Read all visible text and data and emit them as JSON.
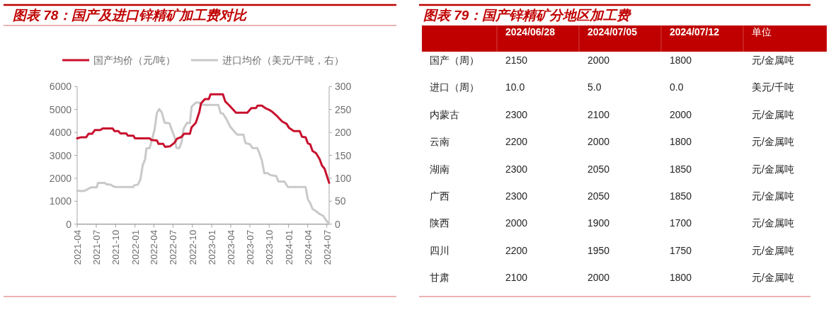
{
  "chart_data": [
    {
      "type": "line",
      "title": "图表 78：国产及进口锌精矿加工费对比",
      "legend": "top",
      "grid": false,
      "marker": "none",
      "line_style": "solid",
      "xlim": [
        "2021-04-01",
        "2024-07-12"
      ],
      "xticks": [
        {
          "value": "2021-04-01",
          "label": "2021-04"
        },
        {
          "value": "2021-07-01",
          "label": "2021-07"
        },
        {
          "value": "2021-10-01",
          "label": "2021-10"
        },
        {
          "value": "2022-01-01",
          "label": "2022-01"
        },
        {
          "value": "2022-04-01",
          "label": "2022-04"
        },
        {
          "value": "2022-07-01",
          "label": "2022-07"
        },
        {
          "value": "2022-10-01",
          "label": "2022-10"
        },
        {
          "value": "2023-01-01",
          "label": "2023-01"
        },
        {
          "value": "2023-04-01",
          "label": "2023-04"
        },
        {
          "value": "2023-07-01",
          "label": "2023-07"
        },
        {
          "value": "2023-10-01",
          "label": "2023-10"
        },
        {
          "value": "2024-01-01",
          "label": "2024-01"
        },
        {
          "value": "2024-04-01",
          "label": "2024-04"
        },
        {
          "value": "2024-07-01",
          "label": "2024-07"
        }
      ],
      "ylim": [
        0,
        6000
      ],
      "yticks": [
        0,
        1000,
        2000,
        3000,
        4000,
        5000,
        6000
      ],
      "y2lim": [
        0,
        300
      ],
      "y2ticks": [
        0,
        50,
        100,
        150,
        200,
        250,
        300
      ],
      "series": [
        {
          "name": "国产均价（元/吨）",
          "color": "#c8102e",
          "x": [
            "2021-04-01",
            "2021-04-21",
            "2021-05-14",
            "2021-05-25",
            "2021-06-11",
            "2021-06-24",
            "2021-07-20",
            "2021-07-31",
            "2021-09-17",
            "2021-09-25",
            "2021-10-14",
            "2021-10-23",
            "2021-11-20",
            "2021-11-28",
            "2021-12-24",
            "2022-01-01",
            "2022-03-12",
            "2022-03-20",
            "2022-04-15",
            "2022-04-23",
            "2022-05-15",
            "2022-05-24",
            "2022-06-16",
            "2022-07-08",
            "2022-07-19",
            "2022-08-11",
            "2022-08-22",
            "2022-09-19",
            "2022-09-27",
            "2022-10-17",
            "2022-11-03",
            "2022-11-11",
            "2022-11-29",
            "2022-12-18",
            "2022-12-26",
            "2023-02-23",
            "2023-03-06",
            "2023-03-23",
            "2023-04-03",
            "2023-04-26",
            "2023-06-19",
            "2023-07-08",
            "2023-07-30",
            "2023-08-07",
            "2023-08-27",
            "2023-09-13",
            "2023-09-30",
            "2023-10-17",
            "2023-11-03",
            "2023-12-01",
            "2023-12-23",
            "2024-01-03",
            "2024-01-26",
            "2024-02-23",
            "2024-03-05",
            "2024-03-22",
            "2024-04-02",
            "2024-04-13",
            "2024-04-24",
            "2024-05-11",
            "2024-05-28",
            "2024-06-08",
            "2024-06-20",
            "2024-07-12"
          ],
          "values": [
            3740,
            3790,
            3790,
            3940,
            3940,
            4100,
            4100,
            4170,
            4170,
            4060,
            4060,
            3960,
            3960,
            3860,
            3860,
            3740,
            3740,
            3670,
            3650,
            3500,
            3500,
            3370,
            3390,
            3550,
            3720,
            3810,
            3940,
            3940,
            4220,
            4420,
            4890,
            5270,
            5450,
            5450,
            5660,
            5660,
            5350,
            5200,
            5090,
            4860,
            4860,
            5060,
            5060,
            5170,
            5170,
            5060,
            4990,
            4890,
            4750,
            4480,
            4370,
            4200,
            4060,
            4060,
            3810,
            3790,
            3520,
            3480,
            3190,
            3090,
            2830,
            2550,
            2420,
            1800
          ]
        },
        {
          "name": "进口均价（美元/干吨，右）",
          "color": "#c9c9c9",
          "axis": "y2",
          "x": [
            "2021-04-01",
            "2021-04-27",
            "2021-05-08",
            "2021-05-21",
            "2021-06-05",
            "2021-07-03",
            "2021-07-09",
            "2021-08-11",
            "2021-08-17",
            "2021-09-08",
            "2021-09-20",
            "2021-10-03",
            "2021-12-24",
            "2021-12-30",
            "2022-01-15",
            "2022-01-27",
            "2022-02-07",
            "2022-02-18",
            "2022-02-24",
            "2022-03-12",
            "2022-03-20",
            "2022-04-04",
            "2022-04-15",
            "2022-04-26",
            "2022-05-08",
            "2022-05-22",
            "2022-06-14",
            "2022-06-27",
            "2022-07-08",
            "2022-07-17",
            "2022-07-31",
            "2022-08-11",
            "2022-08-20",
            "2022-09-05",
            "2022-09-19",
            "2022-09-27",
            "2022-10-17",
            "2022-11-03",
            "2022-11-09",
            "2022-12-01",
            "2023-02-01",
            "2023-02-12",
            "2023-02-23",
            "2023-03-12",
            "2023-03-29",
            "2023-04-20",
            "2023-05-02",
            "2023-06-01",
            "2023-06-10",
            "2023-07-02",
            "2023-07-13",
            "2023-08-05",
            "2023-08-16",
            "2023-08-27",
            "2023-09-08",
            "2023-09-24",
            "2023-10-06",
            "2023-11-03",
            "2023-11-14",
            "2023-12-12",
            "2023-12-29",
            "2024-03-22",
            "2024-04-02",
            "2024-04-13",
            "2024-04-24",
            "2024-05-11",
            "2024-05-28",
            "2024-06-14",
            "2024-06-25",
            "2024-07-12"
          ],
          "values": [
            73,
            72,
            73,
            76,
            80,
            80,
            90,
            90,
            87,
            86,
            82,
            81,
            81,
            85,
            86,
            98,
            129,
            141,
            165,
            166,
            180,
            206,
            242,
            251,
            244,
            221,
            220,
            203,
            190,
            166,
            166,
            180,
            208,
            221,
            220,
            256,
            265,
            265,
            261,
            260,
            260,
            242,
            241,
            229,
            213,
            201,
            195,
            195,
            177,
            174,
            166,
            166,
            154,
            139,
            111,
            111,
            107,
            105,
            93,
            93,
            81,
            81,
            54,
            46,
            33,
            28,
            22,
            18,
            10,
            0
          ]
        }
      ]
    },
    {
      "type": "other",
      "title": "图表 79：国产锌精矿分地区加工费",
      "categories": [
        null,
        "2024/06/28",
        "2024/07/05",
        "2024/07/12",
        "单位"
      ],
      "y_categories": [
        "国产（周）",
        "进口（周）",
        "内蒙古",
        "云南",
        "湖南",
        "广西",
        "陕西",
        "四川",
        "甘肃"
      ],
      "cell_labels": [
        [
          "2150",
          "2000",
          "1800",
          "元/金属吨"
        ],
        [
          "10.0",
          "5.0",
          "0.0",
          "美元/千吨"
        ],
        [
          "2300",
          "2100",
          "2000",
          "元/金属吨"
        ],
        [
          "2200",
          "2000",
          "1800",
          "元/金属吨"
        ],
        [
          "2300",
          "2050",
          "1850",
          "元/金属吨"
        ],
        [
          "2300",
          "2050",
          "1850",
          "元/金属吨"
        ],
        [
          "2000",
          "1900",
          "1700",
          "元/金属吨"
        ],
        [
          "2200",
          "1950",
          "1750",
          "元/金属吨"
        ],
        [
          "2100",
          "2000",
          "1800",
          "元/金属吨"
        ]
      ]
    }
  ]
}
